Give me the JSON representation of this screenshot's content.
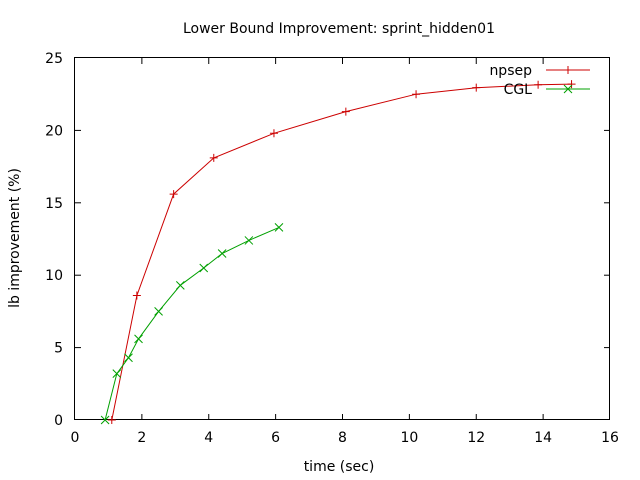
{
  "chart_data": {
    "type": "line",
    "title": "Lower Bound Improvement: sprint_hidden01",
    "xlabel": "time (sec)",
    "ylabel": "lb improvement (%)",
    "xlim": [
      0,
      16
    ],
    "ylim": [
      0,
      25
    ],
    "x_ticks": [
      "0",
      "2",
      "4",
      "6",
      "8",
      "10",
      "12",
      "14",
      "16"
    ],
    "y_ticks": [
      "0",
      "5",
      "10",
      "15",
      "20",
      "25"
    ],
    "grid": false,
    "legend_position": "top-right",
    "series": [
      {
        "name": "npsep",
        "color": "#cc0000",
        "marker": "plus",
        "x": [
          1.1,
          1.85,
          2.95,
          4.15,
          5.95,
          8.1,
          10.2,
          12.0,
          13.85,
          14.85
        ],
        "y": [
          0,
          8.6,
          15.6,
          18.1,
          19.8,
          21.3,
          22.5,
          22.95,
          23.15,
          23.2
        ]
      },
      {
        "name": "CGL",
        "color": "#00a000",
        "marker": "cross",
        "x": [
          0.9,
          1.25,
          1.6,
          1.9,
          2.5,
          3.15,
          3.85,
          4.4,
          5.2,
          6.1
        ],
        "y": [
          0,
          3.2,
          4.3,
          5.6,
          7.5,
          9.3,
          10.5,
          11.5,
          12.4,
          13.3
        ]
      }
    ]
  }
}
